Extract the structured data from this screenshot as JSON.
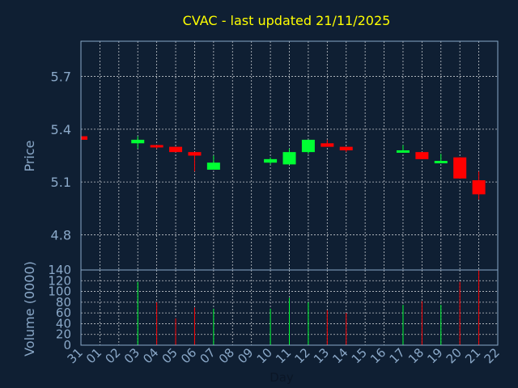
{
  "chart_data": [
    {
      "type": "candlestick",
      "title": "CVAC - last updated 21/11/2025",
      "ylabel": "Price",
      "ylim": [
        4.6,
        5.9
      ],
      "yticks": [
        "4.8",
        "5.1",
        "5.4",
        "5.7"
      ],
      "categories": [
        "31",
        "01",
        "02",
        "03",
        "04",
        "05",
        "06",
        "07",
        "08",
        "09",
        "10",
        "11",
        "12",
        "13",
        "14",
        "15",
        "16",
        "17",
        "18",
        "19",
        "20",
        "21",
        "22"
      ],
      "candles": [
        {
          "day": "31",
          "open": 5.36,
          "close": 5.34,
          "high": 5.36,
          "low": 5.34
        },
        {
          "day": "03",
          "open": 5.32,
          "close": 5.34,
          "high": 5.36,
          "low": 5.29
        },
        {
          "day": "04",
          "open": 5.31,
          "close": 5.3,
          "high": 5.31,
          "low": 5.29
        },
        {
          "day": "05",
          "open": 5.3,
          "close": 5.27,
          "high": 5.3,
          "low": 5.27
        },
        {
          "day": "06",
          "open": 5.27,
          "close": 5.25,
          "high": 5.27,
          "low": 5.16
        },
        {
          "day": "07",
          "open": 5.17,
          "close": 5.21,
          "high": 5.25,
          "low": 5.17
        },
        {
          "day": "10",
          "open": 5.21,
          "close": 5.23,
          "high": 5.24,
          "low": 5.2
        },
        {
          "day": "11",
          "open": 5.2,
          "close": 5.27,
          "high": 5.29,
          "low": 5.2
        },
        {
          "day": "12",
          "open": 5.27,
          "close": 5.34,
          "high": 5.34,
          "low": 5.26
        },
        {
          "day": "13",
          "open": 5.32,
          "close": 5.3,
          "high": 5.34,
          "low": 5.3
        },
        {
          "day": "14",
          "open": 5.3,
          "close": 5.28,
          "high": 5.3,
          "low": 5.27
        },
        {
          "day": "17",
          "open": 5.27,
          "close": 5.28,
          "high": 5.31,
          "low": 5.27
        },
        {
          "day": "18",
          "open": 5.27,
          "close": 5.23,
          "high": 5.27,
          "low": 5.23
        },
        {
          "day": "19",
          "open": 5.21,
          "close": 5.22,
          "high": 5.26,
          "low": 5.21
        },
        {
          "day": "20",
          "open": 5.24,
          "close": 5.12,
          "high": 5.24,
          "low": 5.12
        },
        {
          "day": "21",
          "open": 5.11,
          "close": 5.03,
          "high": 5.16,
          "low": 5.0
        }
      ]
    },
    {
      "type": "bar",
      "ylabel": "Volume (0000)",
      "xlabel": "Day",
      "ylim": [
        0,
        140
      ],
      "yticks": [
        "0",
        "20",
        "40",
        "60",
        "80",
        "100",
        "120",
        "140"
      ],
      "bars": [
        {
          "day": "03",
          "value": 118,
          "direction": "up"
        },
        {
          "day": "04",
          "value": 80,
          "direction": "down"
        },
        {
          "day": "05",
          "value": 50,
          "direction": "down"
        },
        {
          "day": "06",
          "value": 70,
          "direction": "down"
        },
        {
          "day": "07",
          "value": 68,
          "direction": "up"
        },
        {
          "day": "10",
          "value": 68,
          "direction": "up"
        },
        {
          "day": "11",
          "value": 88,
          "direction": "up"
        },
        {
          "day": "12",
          "value": 80,
          "direction": "up"
        },
        {
          "day": "13",
          "value": 65,
          "direction": "down"
        },
        {
          "day": "14",
          "value": 60,
          "direction": "down"
        },
        {
          "day": "17",
          "value": 75,
          "direction": "up"
        },
        {
          "day": "18",
          "value": 82,
          "direction": "down"
        },
        {
          "day": "19",
          "value": 75,
          "direction": "up"
        },
        {
          "day": "20",
          "value": 118,
          "direction": "down"
        },
        {
          "day": "21",
          "value": 140,
          "direction": "down"
        }
      ]
    }
  ],
  "colors": {
    "background": "#0f1f33",
    "up": "#00ff33",
    "down": "#ff0000",
    "title": "#ffff00",
    "axis_text": "#8aa8c8",
    "grid": "#ffffff",
    "frame": "#8aa8c8"
  }
}
